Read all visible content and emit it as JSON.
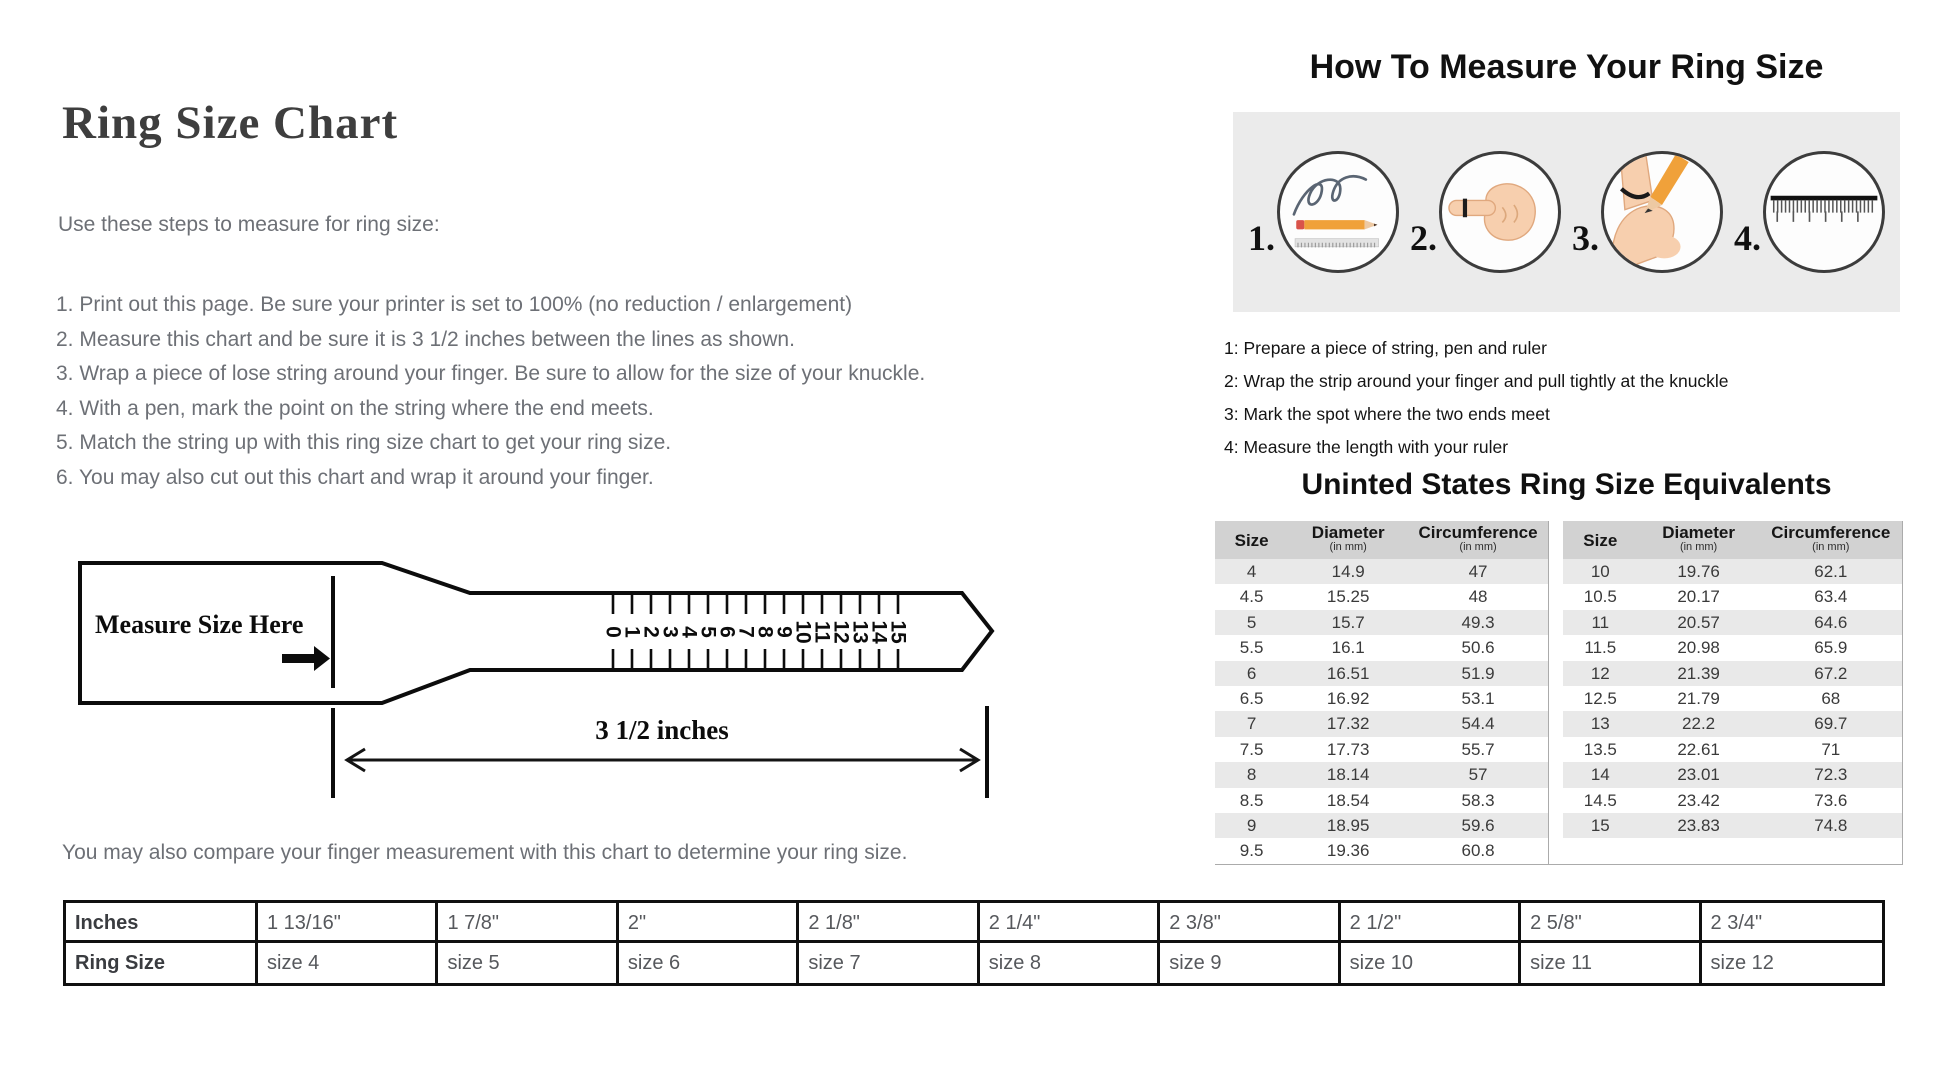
{
  "page": {
    "title": "Ring Size Chart",
    "intro": "Use these steps to measure for ring size:",
    "steps": [
      "1. Print out this page. Be sure your printer is set to 100% (no reduction / enlargement)",
      "2. Measure this chart and be sure it is 3 1/2 inches between the lines as shown.",
      "3. Wrap a piece of lose string around your finger. Be sure to allow for the size of your knuckle.",
      "4. With a pen, mark the point on the string where the end meets.",
      "5. Match the string up with this ring size chart to get your ring size.",
      "6. You may also cut out this chart and wrap it around your finger."
    ],
    "compare_note": "You may also compare your finger measurement with this chart to determine your ring size."
  },
  "ruler": {
    "label": "Measure Size Here",
    "measure_label": "3 1/2 inches",
    "tick_labels": [
      "0",
      "1",
      "2",
      "3",
      "4",
      "5",
      "6",
      "7",
      "8",
      "9",
      "10",
      "11",
      "12",
      "13",
      "14",
      "15"
    ]
  },
  "how_to": {
    "title": "How To Measure Your Ring Size",
    "step_numbers": [
      "1.",
      "2.",
      "3.",
      "4."
    ],
    "icon_names": [
      "string-pen-ruler-icon",
      "string-on-finger-icon",
      "mark-string-icon",
      "ruler-icon"
    ],
    "steps": [
      "1: Prepare a piece of string, pen and ruler",
      "2: Wrap the strip around your finger and pull tightly at the knuckle",
      "3: Mark the spot where the two ends meet",
      "4: Measure the length with your ruler"
    ]
  },
  "equivalents": {
    "title": "Uninted States Ring Size Equivalents",
    "columns": [
      "Size",
      "Diameter",
      "Circumference"
    ],
    "column_sub": "(in mm)",
    "left_rows": [
      [
        "4",
        "14.9",
        "47"
      ],
      [
        "4.5",
        "15.25",
        "48"
      ],
      [
        "5",
        "15.7",
        "49.3"
      ],
      [
        "5.5",
        "16.1",
        "50.6"
      ],
      [
        "6",
        "16.51",
        "51.9"
      ],
      [
        "6.5",
        "16.92",
        "53.1"
      ],
      [
        "7",
        "17.32",
        "54.4"
      ],
      [
        "7.5",
        "17.73",
        "55.7"
      ],
      [
        "8",
        "18.14",
        "57"
      ],
      [
        "8.5",
        "18.54",
        "58.3"
      ],
      [
        "9",
        "18.95",
        "59.6"
      ],
      [
        "9.5",
        "19.36",
        "60.8"
      ]
    ],
    "right_rows": [
      [
        "10",
        "19.76",
        "62.1"
      ],
      [
        "10.5",
        "20.17",
        "63.4"
      ],
      [
        "11",
        "20.57",
        "64.6"
      ],
      [
        "11.5",
        "20.98",
        "65.9"
      ],
      [
        "12",
        "21.39",
        "67.2"
      ],
      [
        "12.5",
        "21.79",
        "68"
      ],
      [
        "13",
        "22.2",
        "69.7"
      ],
      [
        "13.5",
        "22.61",
        "71"
      ],
      [
        "14",
        "23.01",
        "72.3"
      ],
      [
        "14.5",
        "23.42",
        "73.6"
      ],
      [
        "15",
        "23.83",
        "74.8"
      ]
    ]
  },
  "size_chart": {
    "row1_header": "Inches",
    "row2_header": "Ring Size",
    "inches": [
      "1 13/16\"",
      "1 7/8\"",
      "2\"",
      "2 1/8\"",
      "2 1/4\"",
      "2 3/8\"",
      "2 1/2\"",
      "2 5/8\"",
      "2 3/4\""
    ],
    "ring_sizes": [
      "size 4",
      "size 5",
      "size 6",
      "size 7",
      "size 8",
      "size 9",
      "size 10",
      "size 11",
      "size 12"
    ]
  },
  "colors": {
    "panel_bg": "#ebebeb",
    "table_header_bg": "#d2d2d2",
    "table_row_alt_bg": "#e9e9e9",
    "pencil_orange": "#f0a13a",
    "eraser_red": "#d9534a",
    "skin": "#f7cfae"
  }
}
